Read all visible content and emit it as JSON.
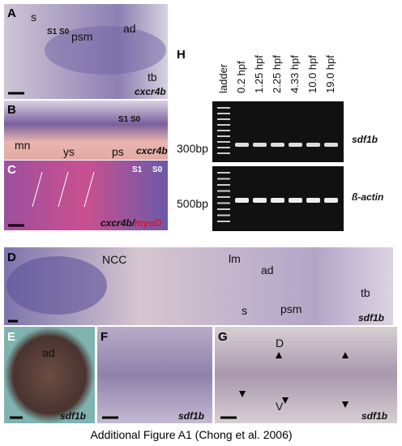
{
  "panels": {
    "A": {
      "letter": "A",
      "labels": [
        "s",
        "S1 S0",
        "psm",
        "ad",
        "tb"
      ],
      "gene": "cxcr4b"
    },
    "B": {
      "letter": "B",
      "labels": [
        "S1 S0",
        "mn",
        "ys",
        "ps"
      ],
      "gene": "cxcr4b"
    },
    "C": {
      "letter": "C",
      "labels": [
        "S1",
        "S0"
      ],
      "gene": "cxcr4b/",
      "gene2": "myoD"
    },
    "D": {
      "letter": "D",
      "labels": [
        "NCC",
        "lm",
        "ad",
        "s",
        "psm",
        "tb"
      ],
      "gene": "sdf1b"
    },
    "E": {
      "letter": "E",
      "labels": [
        "ad"
      ],
      "gene": "sdf1b"
    },
    "F": {
      "letter": "F",
      "gene": "sdf1b"
    },
    "G": {
      "letter": "G",
      "labels": [
        "D",
        "V"
      ],
      "gene": "sdf1b"
    }
  },
  "gel": {
    "letter": "H",
    "lanes": [
      "ladder",
      "0.2  hpf",
      "1.25 hpf",
      "2.25 hpf",
      "4.33 hpf",
      "10.0 hpf",
      "19.0 hpf"
    ],
    "markers": [
      "300bp",
      "500bp"
    ],
    "genes": [
      "sdf1b",
      "ß-actin"
    ]
  },
  "caption": "Additional Figure A1 (Chong et al. 2006)"
}
